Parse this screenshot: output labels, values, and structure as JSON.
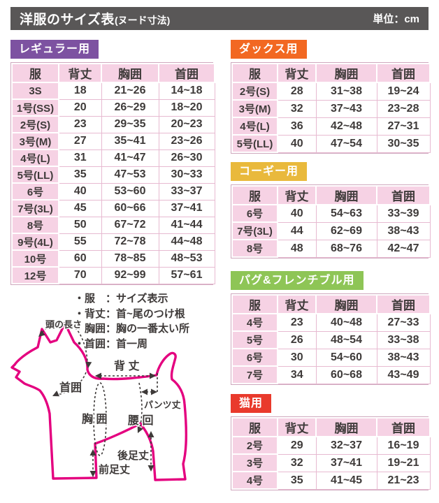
{
  "header": {
    "title": "洋服のサイズ表",
    "title_suffix": "(ヌード寸法)",
    "unit": "単位：cm"
  },
  "columns": [
    "服",
    "背丈",
    "胸囲",
    "首囲"
  ],
  "tables": [
    {
      "label": "レギュラー用",
      "color": "#7d52a1",
      "rows": [
        [
          "3S",
          "18",
          "21~26",
          "14~18"
        ],
        [
          "1号(SS)",
          "20",
          "26~29",
          "18~20"
        ],
        [
          "2号(S)",
          "23",
          "29~35",
          "20~23"
        ],
        [
          "3号(M)",
          "27",
          "35~41",
          "23~26"
        ],
        [
          "4号(L)",
          "31",
          "41~47",
          "26~30"
        ],
        [
          "5号(LL)",
          "35",
          "47~53",
          "30~33"
        ],
        [
          "6号",
          "40",
          "53~60",
          "33~37"
        ],
        [
          "7号(3L)",
          "45",
          "60~66",
          "37~41"
        ],
        [
          "8号",
          "50",
          "67~72",
          "41~44"
        ],
        [
          "9号(4L)",
          "55",
          "72~78",
          "44~48"
        ],
        [
          "10号",
          "60",
          "78~85",
          "48~53"
        ],
        [
          "12号",
          "70",
          "92~99",
          "57~61"
        ]
      ]
    },
    {
      "label": "ダックス用",
      "color": "#f26822",
      "rows": [
        [
          "2号(S)",
          "28",
          "31~38",
          "19~24"
        ],
        [
          "3号(M)",
          "32",
          "37~43",
          "23~28"
        ],
        [
          "4号(L)",
          "36",
          "42~48",
          "27~31"
        ],
        [
          "5号(LL)",
          "40",
          "47~54",
          "30~35"
        ]
      ]
    },
    {
      "label": "コーギー用",
      "color": "#e9b93c",
      "rows": [
        [
          "6号",
          "40",
          "54~63",
          "33~39"
        ],
        [
          "7号(3L)",
          "44",
          "62~69",
          "38~43"
        ],
        [
          "8号",
          "48",
          "68~76",
          "42~47"
        ]
      ]
    },
    {
      "label": "パグ&フレンチブル用",
      "color": "#8ec556",
      "rows": [
        [
          "4号",
          "23",
          "40~48",
          "27~33"
        ],
        [
          "5号",
          "26",
          "48~54",
          "33~38"
        ],
        [
          "6号",
          "30",
          "54~60",
          "38~43"
        ],
        [
          "7号",
          "34",
          "60~68",
          "43~49"
        ]
      ]
    },
    {
      "label": "猫用",
      "color": "#e93a2c",
      "rows": [
        [
          "2号",
          "29",
          "32~37",
          "16~19"
        ],
        [
          "3号",
          "32",
          "37~41",
          "19~21"
        ],
        [
          "4号",
          "35",
          "41~45",
          "21~23"
        ]
      ]
    }
  ],
  "legend": {
    "items": [
      "・服　：サイズ表示",
      "・背丈：首~尾のつけ根",
      "・胸囲：胸の一番太い所",
      "・首囲：首一周"
    ]
  },
  "diagram": {
    "outline_color": "#e4007f",
    "labels": {
      "head_length": "頭の長さ",
      "back_length": "背 丈",
      "neck": "首囲",
      "chest": "胸 囲",
      "waist": "腰 回",
      "pants": "パンツ丈",
      "hind_leg": "後足丈",
      "fore_leg": "前足丈"
    }
  }
}
